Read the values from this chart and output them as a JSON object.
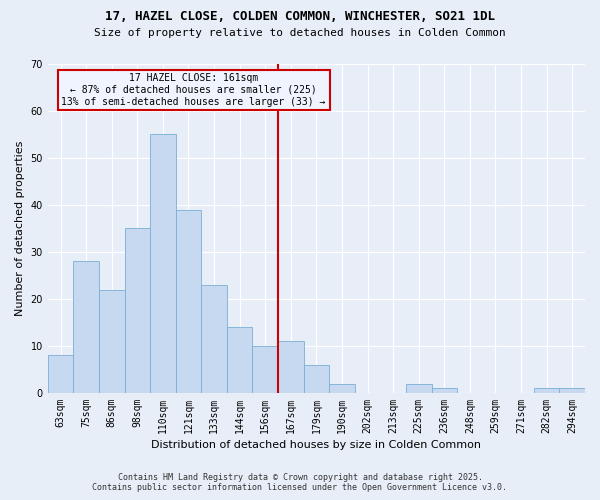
{
  "title1": "17, HAZEL CLOSE, COLDEN COMMON, WINCHESTER, SO21 1DL",
  "title2": "Size of property relative to detached houses in Colden Common",
  "xlabel": "Distribution of detached houses by size in Colden Common",
  "ylabel": "Number of detached properties",
  "categories": [
    "63sqm",
    "75sqm",
    "86sqm",
    "98sqm",
    "110sqm",
    "121sqm",
    "133sqm",
    "144sqm",
    "156sqm",
    "167sqm",
    "179sqm",
    "190sqm",
    "202sqm",
    "213sqm",
    "225sqm",
    "236sqm",
    "248sqm",
    "259sqm",
    "271sqm",
    "282sqm",
    "294sqm"
  ],
  "values": [
    8,
    28,
    22,
    35,
    55,
    39,
    23,
    14,
    10,
    11,
    6,
    2,
    0,
    0,
    2,
    1,
    0,
    0,
    0,
    1,
    1
  ],
  "bar_color": "#c6d9f0",
  "bar_edge_color": "#7bafd4",
  "vline_x": 8.5,
  "vline_color": "#cc0000",
  "annotation_title": "17 HAZEL CLOSE: 161sqm",
  "annotation_line1": "← 87% of detached houses are smaller (225)",
  "annotation_line2": "13% of semi-detached houses are larger (33) →",
  "annotation_box_color": "#cc0000",
  "annotation_bg": "#f0f4ff",
  "ylim": [
    0,
    70
  ],
  "yticks": [
    0,
    10,
    20,
    30,
    40,
    50,
    60,
    70
  ],
  "footnote1": "Contains HM Land Registry data © Crown copyright and database right 2025.",
  "footnote2": "Contains public sector information licensed under the Open Government Licence v3.0.",
  "background_color": "#e8eef8",
  "grid_color": "#ffffff",
  "title_fontsize": 9,
  "subtitle_fontsize": 8,
  "axis_label_fontsize": 8,
  "tick_fontsize": 7,
  "annotation_fontsize": 7,
  "footnote_fontsize": 6
}
